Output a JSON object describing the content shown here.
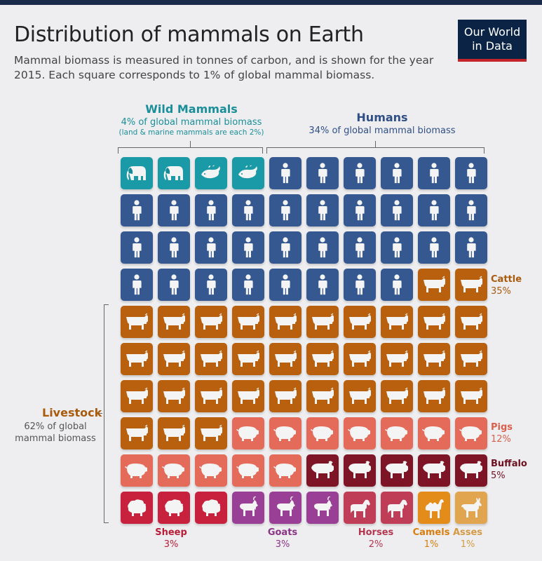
{
  "header": {
    "title": "Distribution of mammals on Earth",
    "subtitle": "Mammal biomass is measured in tonnes of carbon, and is shown for the year 2015. Each square corresponds to 1% of global mammal biomass.",
    "logo_line1": "Our World",
    "logo_line2": "in Data"
  },
  "groups": {
    "wild": {
      "title": "Wild Mammals",
      "sub": "4% of global mammal biomass",
      "note": "(land & marine mammals are each 2%)"
    },
    "humans": {
      "title": "Humans",
      "sub": "34% of global mammal biomass"
    },
    "livestock": {
      "title": "Livestock",
      "sub": "62% of global mammal biomass"
    }
  },
  "colors": {
    "wild": "#1a9aa6",
    "humans": "#34588f",
    "cattle": "#b8600e",
    "pigs": "#e46b5a",
    "buffalo": "#7d1526",
    "sheep": "#c8213e",
    "goats": "#9a3f96",
    "horses": "#bf3d56",
    "camels": "#e38c1a",
    "asses": "#e0a54e"
  },
  "chart_data": {
    "type": "waffle",
    "title": "Distribution of mammals on Earth",
    "unit": "% of global mammal biomass",
    "grid": {
      "rows": 10,
      "cols": 10
    },
    "series": [
      {
        "key": "land",
        "icon": "elephant-icon",
        "group": "wild",
        "value": 2
      },
      {
        "key": "marine",
        "icon": "whale-icon",
        "group": "wild",
        "value": 2
      },
      {
        "key": "humans",
        "icon": "human-icon",
        "group": "humans",
        "value": 34
      },
      {
        "key": "cattle",
        "name": "Cattle",
        "icon": "cow-icon",
        "group": "livestock",
        "value": 35,
        "label": "35%"
      },
      {
        "key": "pigs",
        "name": "Pigs",
        "icon": "pig-icon",
        "group": "livestock",
        "value": 12,
        "label": "12%"
      },
      {
        "key": "buffalo",
        "name": "Buffalo",
        "icon": "buffalo-icon",
        "group": "livestock",
        "value": 5,
        "label": "5%"
      },
      {
        "key": "sheep",
        "name": "Sheep",
        "icon": "sheep-icon",
        "group": "livestock",
        "value": 3,
        "label": "3%"
      },
      {
        "key": "goats",
        "name": "Goats",
        "icon": "goat-icon",
        "group": "livestock",
        "value": 3,
        "label": "3%"
      },
      {
        "key": "horses",
        "name": "Horses",
        "icon": "horse-icon",
        "group": "livestock",
        "value": 2,
        "label": "2%"
      },
      {
        "key": "camels",
        "name": "Camels",
        "icon": "camel-icon",
        "group": "livestock",
        "value": 1,
        "label": "1%"
      },
      {
        "key": "asses",
        "name": "Asses",
        "icon": "donkey-icon",
        "group": "livestock",
        "value": 1,
        "label": "1%"
      }
    ]
  }
}
